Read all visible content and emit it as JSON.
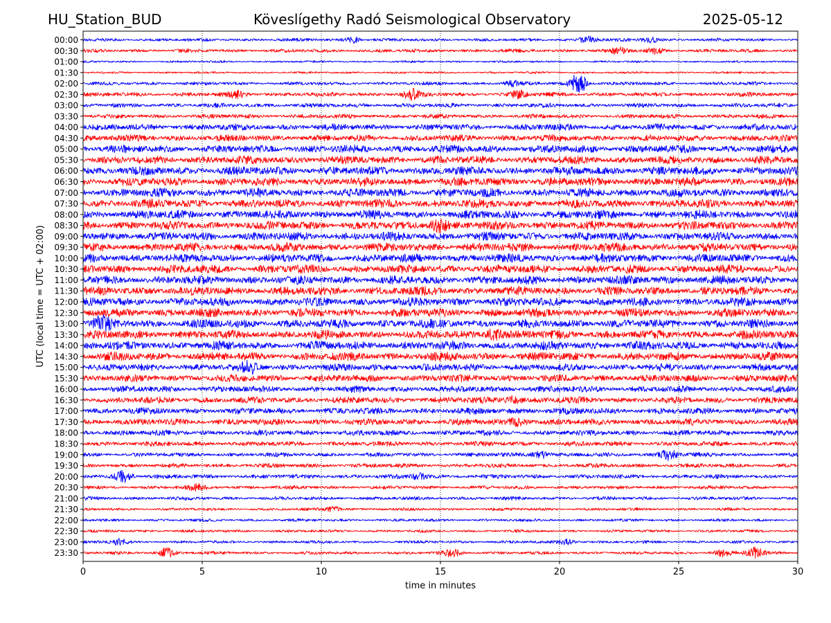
{
  "header": {
    "station": "HU_Station_BUD",
    "title": "Köveslígethy Radó Seismological Observatory",
    "date": "2025-05-12"
  },
  "chart_data": {
    "type": "line",
    "xlabel": "time in minutes",
    "ylabel": "UTC (local time = UTC + 02:00)",
    "xlim": [
      0,
      30
    ],
    "x_ticks": [
      "0",
      "5",
      "10",
      "15",
      "20",
      "25",
      "30"
    ],
    "x_grid": "dotted vertical lines at each x tick",
    "row_colors": [
      "#0000ff",
      "#ff0000"
    ],
    "rows": [
      {
        "label": "00:00",
        "amplitude": 0.22,
        "events": [
          {
            "t": 11.3,
            "amp": 0.5
          },
          {
            "t": 21.2,
            "amp": 0.55
          },
          {
            "t": 23.8,
            "amp": 0.45
          }
        ]
      },
      {
        "label": "00:30",
        "amplitude": 0.25,
        "events": [
          {
            "t": 22.5,
            "amp": 0.45
          },
          {
            "t": 24.0,
            "amp": 0.45
          }
        ]
      },
      {
        "label": "01:00",
        "amplitude": 0.15,
        "events": []
      },
      {
        "label": "01:30",
        "amplitude": 0.15,
        "events": []
      },
      {
        "label": "02:00",
        "amplitude": 0.25,
        "events": [
          {
            "t": 20.8,
            "amp": 1.8
          },
          {
            "t": 18.0,
            "amp": 0.4
          }
        ]
      },
      {
        "label": "02:30",
        "amplitude": 0.3,
        "events": [
          {
            "t": 6.5,
            "amp": 0.5
          },
          {
            "t": 13.8,
            "amp": 0.8
          },
          {
            "t": 18.3,
            "amp": 0.5
          }
        ]
      },
      {
        "label": "03:00",
        "amplitude": 0.3,
        "events": []
      },
      {
        "label": "03:30",
        "amplitude": 0.3,
        "events": []
      },
      {
        "label": "04:00",
        "amplitude": 0.45,
        "events": []
      },
      {
        "label": "04:30",
        "amplitude": 0.45,
        "events": []
      },
      {
        "label": "05:00",
        "amplitude": 0.55,
        "events": []
      },
      {
        "label": "05:30",
        "amplitude": 0.55,
        "events": []
      },
      {
        "label": "06:00",
        "amplitude": 0.6,
        "events": []
      },
      {
        "label": "06:30",
        "amplitude": 0.6,
        "events": []
      },
      {
        "label": "07:00",
        "amplitude": 0.6,
        "events": []
      },
      {
        "label": "07:30",
        "amplitude": 0.6,
        "events": []
      },
      {
        "label": "08:00",
        "amplitude": 0.6,
        "events": []
      },
      {
        "label": "08:30",
        "amplitude": 0.6,
        "events": [
          {
            "t": 14.9,
            "amp": 1.1
          }
        ]
      },
      {
        "label": "09:00",
        "amplitude": 0.6,
        "events": []
      },
      {
        "label": "09:30",
        "amplitude": 0.6,
        "events": []
      },
      {
        "label": "10:00",
        "amplitude": 0.6,
        "events": []
      },
      {
        "label": "10:30",
        "amplitude": 0.6,
        "events": []
      },
      {
        "label": "11:00",
        "amplitude": 0.6,
        "events": []
      },
      {
        "label": "11:30",
        "amplitude": 0.6,
        "events": []
      },
      {
        "label": "12:00",
        "amplitude": 0.6,
        "events": []
      },
      {
        "label": "12:30",
        "amplitude": 0.6,
        "events": []
      },
      {
        "label": "13:00",
        "amplitude": 0.6,
        "events": [
          {
            "t": 0.8,
            "amp": 0.9
          }
        ]
      },
      {
        "label": "13:30",
        "amplitude": 0.6,
        "events": [
          {
            "t": 17.2,
            "amp": 0.9
          }
        ]
      },
      {
        "label": "14:00",
        "amplitude": 0.6,
        "events": []
      },
      {
        "label": "14:30",
        "amplitude": 0.6,
        "events": []
      },
      {
        "label": "15:00",
        "amplitude": 0.5,
        "events": [
          {
            "t": 7.0,
            "amp": 0.8
          }
        ]
      },
      {
        "label": "15:30",
        "amplitude": 0.5,
        "events": []
      },
      {
        "label": "16:00",
        "amplitude": 0.45,
        "events": []
      },
      {
        "label": "16:30",
        "amplitude": 0.45,
        "events": [
          {
            "t": 18.0,
            "amp": 0.6
          }
        ]
      },
      {
        "label": "17:00",
        "amplitude": 0.45,
        "events": []
      },
      {
        "label": "17:30",
        "amplitude": 0.45,
        "events": [
          {
            "t": 18.3,
            "amp": 0.7
          }
        ]
      },
      {
        "label": "18:00",
        "amplitude": 0.4,
        "events": []
      },
      {
        "label": "18:30",
        "amplitude": 0.35,
        "events": []
      },
      {
        "label": "19:00",
        "amplitude": 0.3,
        "events": [
          {
            "t": 19.2,
            "amp": 0.7
          },
          {
            "t": 24.6,
            "amp": 0.9
          }
        ]
      },
      {
        "label": "19:30",
        "amplitude": 0.3,
        "events": []
      },
      {
        "label": "20:00",
        "amplitude": 0.3,
        "events": [
          {
            "t": 1.7,
            "amp": 1.0
          },
          {
            "t": 14.1,
            "amp": 0.5
          }
        ]
      },
      {
        "label": "20:30",
        "amplitude": 0.25,
        "events": [
          {
            "t": 4.8,
            "amp": 0.5
          }
        ]
      },
      {
        "label": "21:00",
        "amplitude": 0.25,
        "events": []
      },
      {
        "label": "21:30",
        "amplitude": 0.2,
        "events": [
          {
            "t": 10.5,
            "amp": 0.45
          }
        ]
      },
      {
        "label": "22:00",
        "amplitude": 0.2,
        "events": []
      },
      {
        "label": "22:30",
        "amplitude": 0.2,
        "events": []
      },
      {
        "label": "23:00",
        "amplitude": 0.2,
        "events": [
          {
            "t": 1.5,
            "amp": 0.45
          },
          {
            "t": 20.3,
            "amp": 0.4
          }
        ]
      },
      {
        "label": "23:30",
        "amplitude": 0.22,
        "events": [
          {
            "t": 3.5,
            "amp": 0.8
          },
          {
            "t": 15.5,
            "amp": 0.6
          },
          {
            "t": 26.8,
            "amp": 0.6
          },
          {
            "t": 28.2,
            "amp": 0.9
          }
        ]
      }
    ]
  }
}
